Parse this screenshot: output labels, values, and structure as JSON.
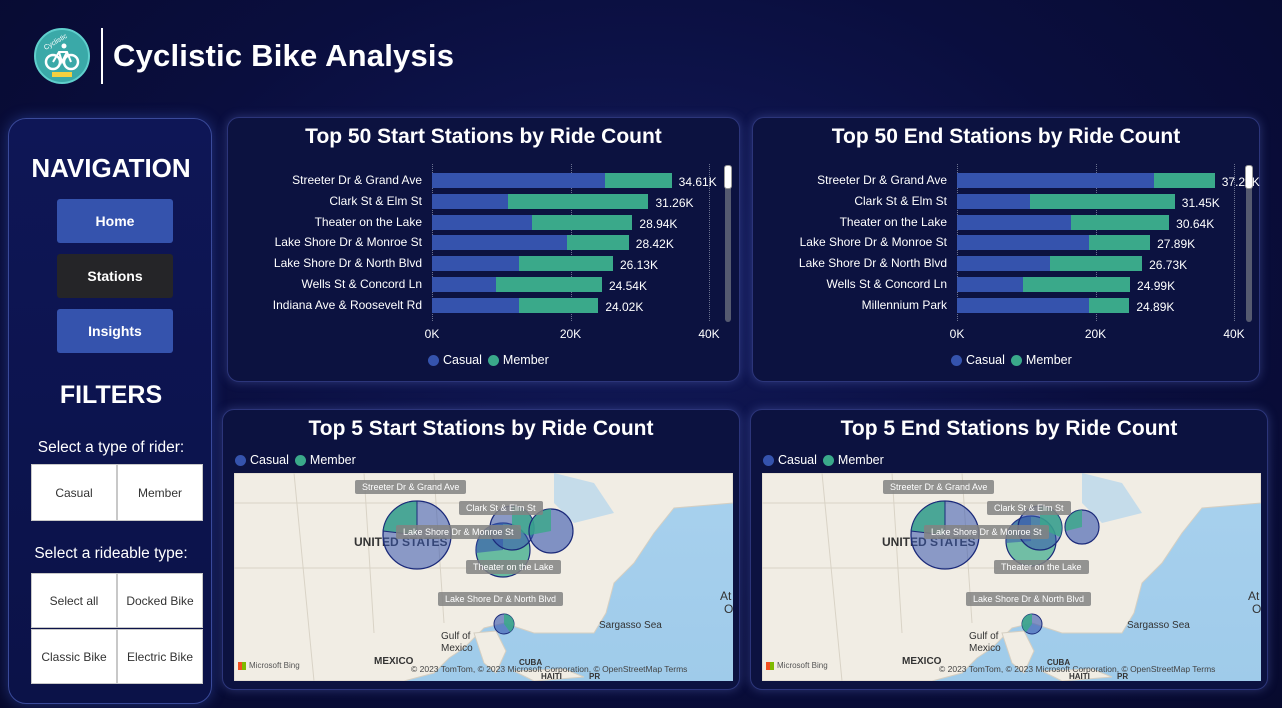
{
  "app": {
    "title": "Cyclistic Bike Analysis",
    "logo_text": "Cyclistic"
  },
  "navigation": {
    "heading": "NAVIGATION",
    "items": [
      {
        "label": "Home",
        "active": false
      },
      {
        "label": "Stations",
        "active": true
      },
      {
        "label": "Insights",
        "active": false
      }
    ]
  },
  "filters": {
    "heading": "FILTERS",
    "rider_label": "Select a type of rider:",
    "rider_options": [
      "Casual",
      "Member"
    ],
    "rideable_label": "Select a rideable type:",
    "rideable_options": [
      "Select all",
      "Docked Bike",
      "Classic Bike",
      "Electric Bike"
    ]
  },
  "colors": {
    "casual": "#3553ad",
    "member": "#3aa98a"
  },
  "legend": {
    "casual": "Casual",
    "member": "Member"
  },
  "chart_data": [
    {
      "type": "bar",
      "title": "Top 50 Start Stations by Ride Count",
      "stacked": true,
      "orientation": "horizontal",
      "categories": [
        "Streeter Dr & Grand Ave",
        "Clark St & Elm St",
        "Theater on the Lake",
        "Lake Shore Dr & Monroe St",
        "Lake Shore Dr & North Blvd",
        "Wells St & Concord Ln",
        "Indiana Ave & Roosevelt Rd"
      ],
      "series": [
        {
          "name": "Casual",
          "values": [
            25000,
            11000,
            14500,
            19500,
            12500,
            9200,
            12500
          ]
        },
        {
          "name": "Member",
          "values": [
            9610,
            20260,
            14440,
            8920,
            13630,
            15340,
            11520
          ]
        }
      ],
      "data_labels": [
        "34.61K",
        "31.26K",
        "28.94K",
        "28.42K",
        "26.13K",
        "24.54K",
        "24.02K"
      ],
      "xticks": [
        "0K",
        "20K",
        "40K"
      ],
      "xlim": [
        0,
        40000
      ],
      "legend_position": "bottom"
    },
    {
      "type": "bar",
      "title": "Top 50 End Stations by Ride Count",
      "stacked": true,
      "orientation": "horizontal",
      "categories": [
        "Streeter Dr & Grand Ave",
        "Clark St & Elm St",
        "Theater on the Lake",
        "Lake Shore Dr & Monroe St",
        "Lake Shore Dr & North Blvd",
        "Wells St & Concord Ln",
        "Millennium Park"
      ],
      "series": [
        {
          "name": "Casual",
          "values": [
            28500,
            10500,
            16500,
            19000,
            13500,
            9500,
            19000
          ]
        },
        {
          "name": "Member",
          "values": [
            8720,
            20950,
            14140,
            8890,
            13230,
            15490,
            5890
          ]
        }
      ],
      "data_labels": [
        "37.22K",
        "31.45K",
        "30.64K",
        "27.89K",
        "26.73K",
        "24.99K",
        "24.89K"
      ],
      "xticks": [
        "0K",
        "20K",
        "40K"
      ],
      "xlim": [
        0,
        40000
      ],
      "legend_position": "bottom"
    }
  ],
  "maps": [
    {
      "title": "Top 5 Start Stations by Ride Count",
      "station_labels": [
        "Streeter Dr & Grand Ave",
        "Clark St & Elm St",
        "Lake Shore Dr & Monroe St",
        "Theater on the Lake",
        "Lake Shore Dr & North Blvd"
      ]
    },
    {
      "title": "Top 5 End Stations by Ride Count",
      "station_labels": [
        "Streeter Dr & Grand Ave",
        "Clark St & Elm St",
        "Lake Shore Dr & Monroe St",
        "Theater on the Lake",
        "Lake Shore Dr & North Blvd"
      ]
    }
  ],
  "map_text": {
    "country": "UNITED STATES",
    "gulf": "Gulf of",
    "gulf2": "Mexico",
    "mexico": "MEXICO",
    "cuba": "CUBA",
    "haiti": "HAITI",
    "pr": "PR",
    "sargasso": "Sargasso Sea",
    "atlantic": "At",
    "atlantic2": "O",
    "bing": "Microsoft Bing",
    "copyright": "© 2023 TomTom, © 2023 Microsoft Corporation, © OpenStreetMap  Terms"
  }
}
